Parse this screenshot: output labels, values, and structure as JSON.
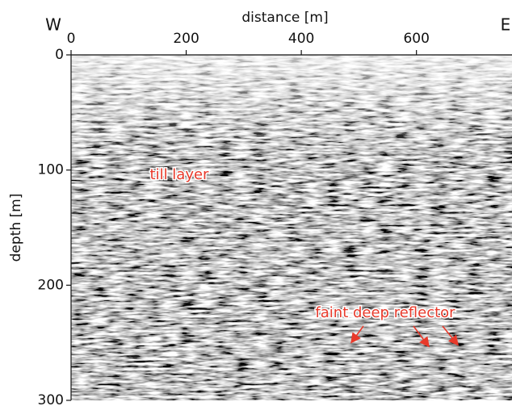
{
  "chart_data": {
    "type": "seismic",
    "xlabel": "distance [m]",
    "ylabel": "depth [m]",
    "direction_labels": [
      "W",
      "E"
    ],
    "xlim": [
      0,
      766
    ],
    "xticks": [
      0,
      200,
      400,
      600
    ],
    "ylim": [
      0,
      300
    ],
    "yticks": [
      0,
      100,
      200,
      300
    ],
    "y_inverted": true,
    "annotations": [
      "till layer",
      "faint deep reflector"
    ],
    "annotation_color": "#e8392a"
  }
}
